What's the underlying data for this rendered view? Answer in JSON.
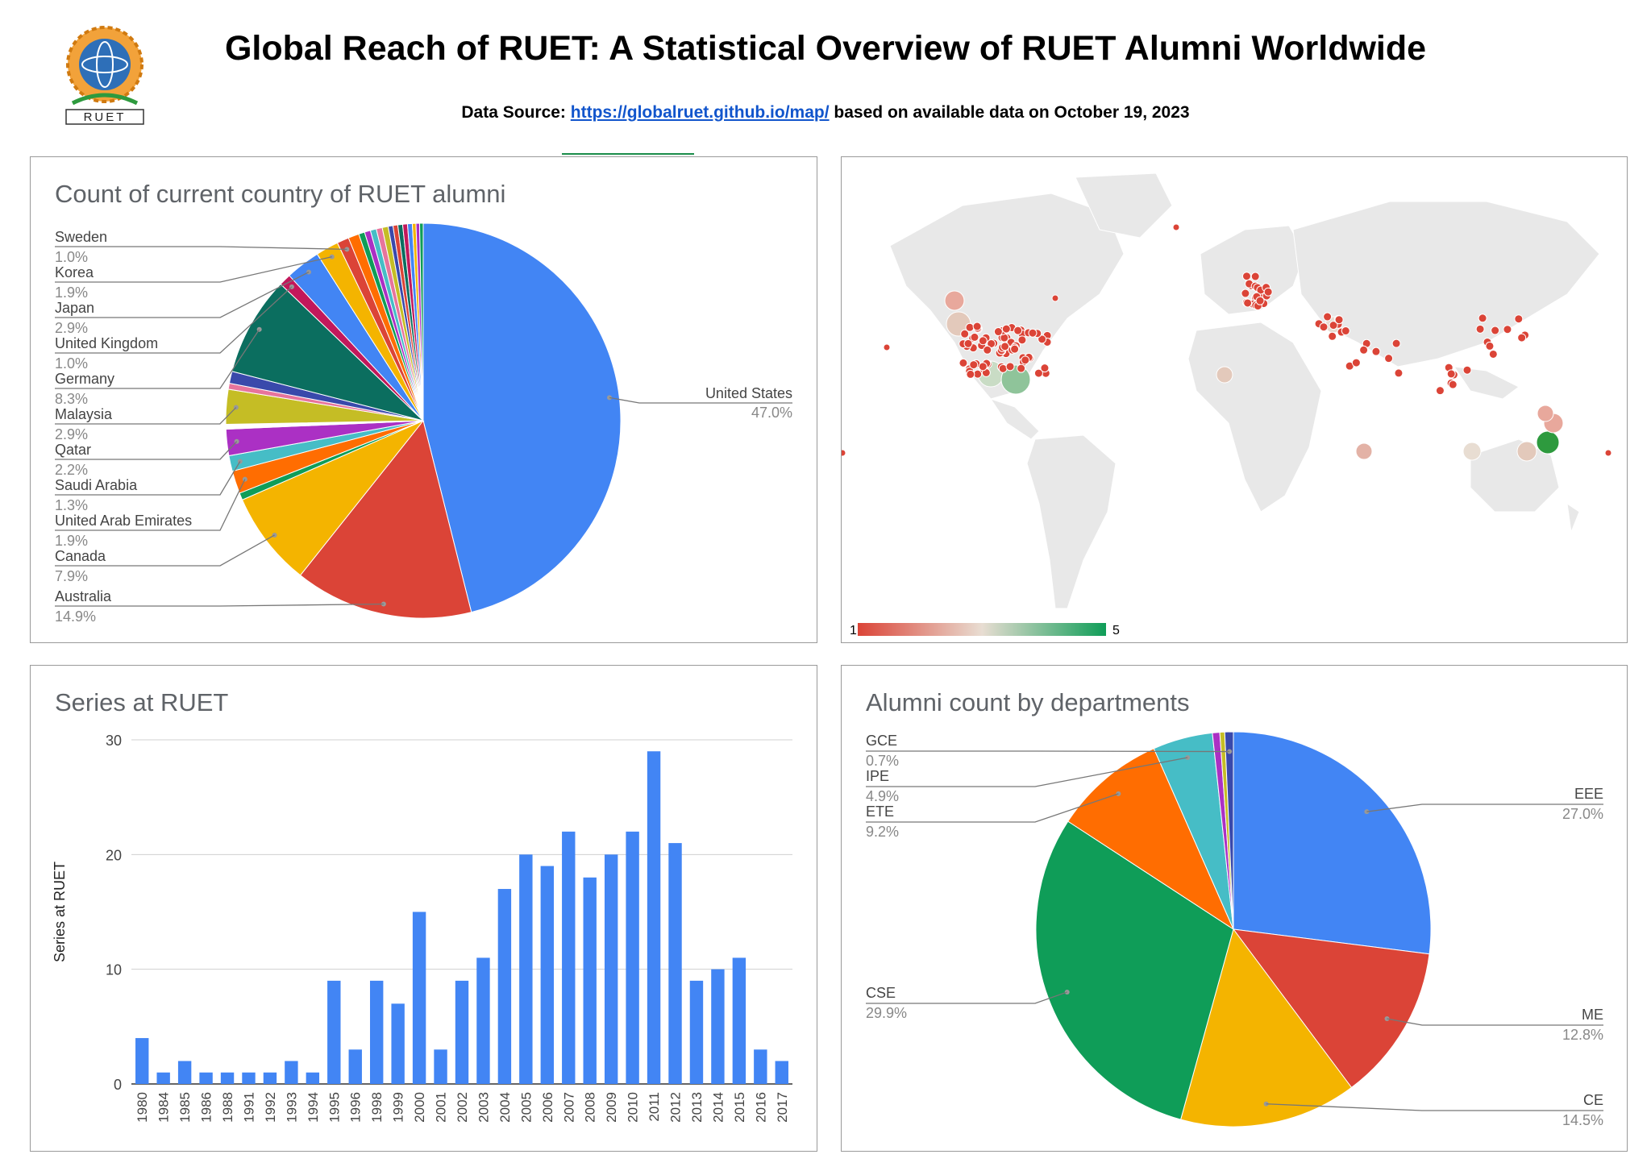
{
  "header": {
    "title": "Global Reach of RUET: A Statistical Overview of RUET Alumni Worldwide",
    "source_prefix": "Data Source: ",
    "source_link": "https://globalruet.github.io/map/",
    "source_suffix": " based on available data on October 19, 2023"
  },
  "logo": {
    "text": "RUET"
  },
  "colors": {
    "blue": "#4285f4",
    "red": "#db4437",
    "yellow": "#f4b400",
    "green": "#0f9d58",
    "orange": "#ff6d01",
    "teal": "#46bdc6",
    "darkgreen": "#0b6e5f",
    "olive": "#c5bd25",
    "purple": "#ab30c4",
    "pink": "#e7749c",
    "navy": "#3949ab",
    "magenta": "#c2185b"
  },
  "map": {
    "legend_min": "1",
    "legend_max": "5",
    "legend_colors": [
      "#db4437",
      "#e8ddd2",
      "#0f9d58"
    ]
  },
  "chart_data": [
    {
      "type": "pie",
      "title": "Count of current country of RUET alumni",
      "slices": [
        {
          "label": "United States",
          "value": 47.0,
          "display": "47.0%",
          "color": "#4285f4",
          "labeled": true
        },
        {
          "label": "Australia",
          "value": 14.9,
          "display": "14.9%",
          "color": "#db4437",
          "labeled": true
        },
        {
          "label": "Canada",
          "value": 7.9,
          "display": "7.9%",
          "color": "#f4b400",
          "labeled": true
        },
        {
          "label": "",
          "value": 0.6,
          "color": "#0f9d58",
          "labeled": false
        },
        {
          "label": "United Arab Emirates",
          "value": 1.9,
          "display": "1.9%",
          "color": "#ff6d01",
          "labeled": true
        },
        {
          "label": "Saudi Arabia",
          "value": 1.3,
          "display": "1.3%",
          "color": "#46bdc6",
          "labeled": true
        },
        {
          "label": "Qatar",
          "value": 2.2,
          "display": "2.2%",
          "color": "#ab30c4",
          "labeled": true
        },
        {
          "label": "",
          "value": 0.4,
          "color": "#ffffff",
          "labeled": false
        },
        {
          "label": "Malaysia",
          "value": 2.9,
          "display": "2.9%",
          "color": "#c5bd25",
          "labeled": true
        },
        {
          "label": "",
          "value": 0.5,
          "color": "#e7749c",
          "labeled": false
        },
        {
          "label": "",
          "value": 1.0,
          "color": "#3949ab",
          "labeled": false
        },
        {
          "label": "Germany",
          "value": 8.3,
          "display": "8.3%",
          "color": "#0b6e5f",
          "labeled": true
        },
        {
          "label": "United Kingdom",
          "value": 1.0,
          "display": "1.0%",
          "color": "#c2185b",
          "labeled": true
        },
        {
          "label": "Japan",
          "value": 2.9,
          "display": "2.9%",
          "color": "#4285f4",
          "labeled": true
        },
        {
          "label": "Korea",
          "value": 1.9,
          "display": "1.9%",
          "color": "#f4b400",
          "labeled": true
        },
        {
          "label": "Sweden",
          "value": 1.0,
          "display": "1.0%",
          "color": "#db4437",
          "labeled": true
        },
        {
          "label": "",
          "value": 0.9,
          "color": "#ff6d01",
          "labeled": false
        },
        {
          "label": "",
          "value": 0.5,
          "color": "#0f9d58",
          "labeled": false
        },
        {
          "label": "",
          "value": 0.5,
          "color": "#ab30c4",
          "labeled": false
        },
        {
          "label": "",
          "value": 0.5,
          "color": "#46bdc6",
          "labeled": false
        },
        {
          "label": "",
          "value": 0.5,
          "color": "#e7749c",
          "labeled": false
        },
        {
          "label": "",
          "value": 0.5,
          "color": "#c5bd25",
          "labeled": false
        },
        {
          "label": "",
          "value": 0.4,
          "color": "#3949ab",
          "labeled": false
        },
        {
          "label": "",
          "value": 0.4,
          "color": "#db4437",
          "labeled": false
        },
        {
          "label": "",
          "value": 0.4,
          "color": "#0b6e5f",
          "labeled": false
        },
        {
          "label": "",
          "value": 0.4,
          "color": "#c2185b",
          "labeled": false
        },
        {
          "label": "",
          "value": 0.4,
          "color": "#4285f4",
          "labeled": false
        },
        {
          "label": "",
          "value": 0.3,
          "color": "#f4b400",
          "labeled": false
        },
        {
          "label": "",
          "value": 0.3,
          "color": "#ab30c4",
          "labeled": false
        },
        {
          "label": "",
          "value": 0.3,
          "color": "#0f9d58",
          "labeled": false
        }
      ]
    },
    {
      "type": "bar",
      "title": "Series at RUET",
      "ylabel": "Series at RUET",
      "xlabel": "",
      "ylim": [
        0,
        30
      ],
      "yticks": [
        0,
        10,
        20,
        30
      ],
      "grid": true,
      "categories": [
        "1980",
        "1984",
        "1985",
        "1986",
        "1988",
        "1991",
        "1992",
        "1993",
        "1994",
        "1995",
        "1996",
        "1998",
        "1999",
        "2000",
        "2001",
        "2002",
        "2003",
        "2004",
        "2005",
        "2006",
        "2007",
        "2008",
        "2009",
        "2010",
        "2011",
        "2012",
        "2013",
        "2014",
        "2015",
        "2016",
        "2017"
      ],
      "values": [
        4,
        1,
        2,
        1,
        1,
        1,
        1,
        2,
        1,
        9,
        3,
        9,
        7,
        15,
        3,
        9,
        11,
        17,
        20,
        19,
        22,
        18,
        20,
        22,
        29,
        21,
        9,
        10,
        11,
        3,
        2
      ]
    },
    {
      "type": "pie",
      "title": "Alumni count by departments",
      "slices": [
        {
          "label": "EEE",
          "value": 27.0,
          "display": "27.0%",
          "color": "#4285f4"
        },
        {
          "label": "ME",
          "value": 12.8,
          "display": "12.8%",
          "color": "#db4437"
        },
        {
          "label": "CE",
          "value": 14.5,
          "display": "14.5%",
          "color": "#f4b400"
        },
        {
          "label": "CSE",
          "value": 29.9,
          "display": "29.9%",
          "color": "#0f9d58"
        },
        {
          "label": "ETE",
          "value": 9.2,
          "display": "9.2%",
          "color": "#ff6d01"
        },
        {
          "label": "IPE",
          "value": 4.9,
          "display": "4.9%",
          "color": "#46bdc6"
        },
        {
          "label": "",
          "value": 0.6,
          "color": "#ab30c4"
        },
        {
          "label": "",
          "value": 0.4,
          "color": "#c5bd25"
        },
        {
          "label": "GCE",
          "value": 0.7,
          "display": "0.7%",
          "color": "#3949ab"
        }
      ]
    }
  ]
}
